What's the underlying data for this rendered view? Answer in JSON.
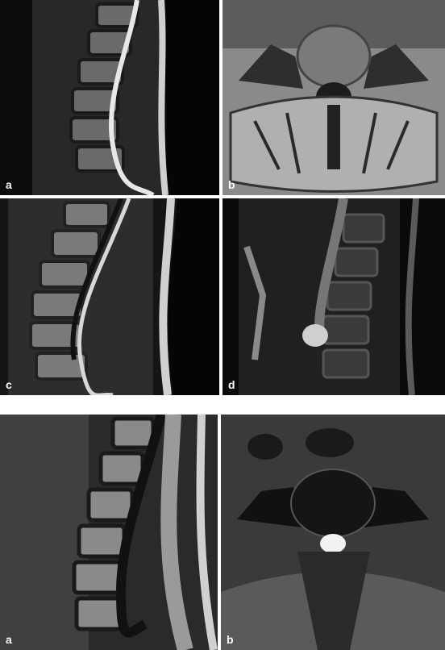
{
  "figures": [
    {
      "panels": [
        {
          "label": "a"
        },
        {
          "label": "b"
        },
        {
          "label": "c"
        },
        {
          "label": "d"
        }
      ]
    },
    {
      "panels": [
        {
          "label": "a"
        },
        {
          "label": "b"
        }
      ]
    }
  ]
}
